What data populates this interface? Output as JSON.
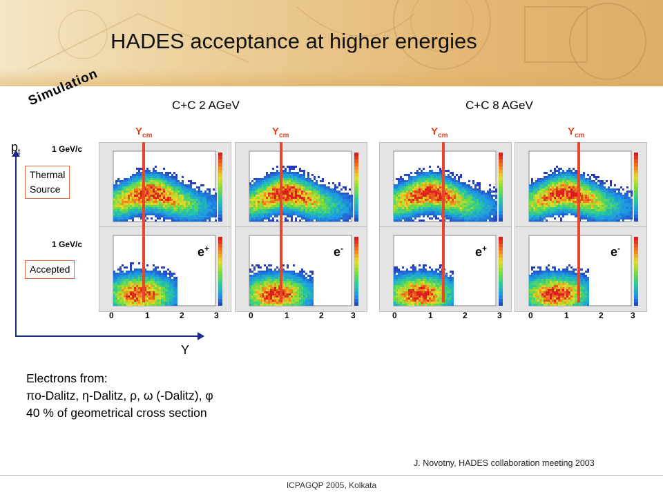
{
  "slide": {
    "title": "HADES acceptance at higher energies",
    "simulation_label": "Simulation",
    "headings": [
      "C+C 2 AGeV",
      "C+C 8 AGeV"
    ],
    "ycm_label": "Y",
    "ycm_sub": "cm",
    "axis": {
      "y_label": "p",
      "y_sub": "t",
      "x_label": "Y",
      "gev_label": "1 GeV/c"
    },
    "boxes": {
      "thermal_line1": "Thermal",
      "thermal_line2": "Source",
      "accepted": "Accepted"
    },
    "x_ticks": [
      "0",
      "1",
      "2",
      "3"
    ],
    "particles": [
      {
        "sym": "e",
        "sup": "+"
      },
      {
        "sym": "e",
        "sup": "-"
      },
      {
        "sym": "e",
        "sup": "+"
      },
      {
        "sym": "e",
        "sup": "-"
      }
    ],
    "description": {
      "line1": "Electrons from:",
      "line2": "πo-Dalitz, η-Dalitz,  ρ,  ω (-Dalitz),  φ",
      "line3": "40 % of geometrical cross section"
    },
    "credit": "J. Novotny, HADES collaboration meeting 2003",
    "footer": "ICPAGQP 2005, Kolkata",
    "colors": {
      "ycm_line": "#e8452a",
      "axis": "#1a2a8a",
      "box_border": "#e06a3a"
    }
  }
}
